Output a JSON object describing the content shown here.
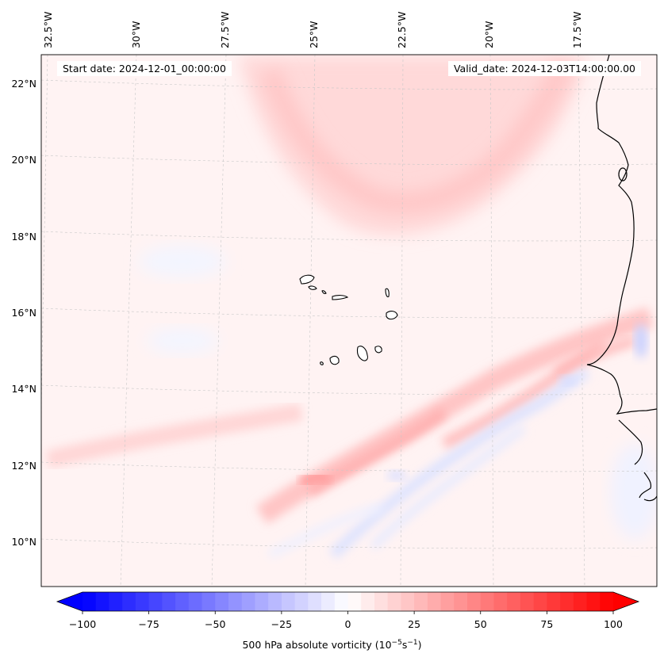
{
  "header": {
    "start_date": "Start date: 2024-12-01_00:00:00",
    "valid_date": "Valid_date: 2024-12-03T14:00:00.00"
  },
  "map": {
    "lon_labels": [
      "32.5°W",
      "30°W",
      "27.5°W",
      "25°W",
      "22.5°W",
      "20°W",
      "17.5°W"
    ],
    "lat_labels": [
      "22°N",
      "20°N",
      "18°N",
      "16°N",
      "14°N",
      "12°N",
      "10°N"
    ],
    "colors": {
      "neg_max": "#0000ff",
      "neutral": "#ffffff",
      "pos_max": "#ff0000",
      "coast": "#000000",
      "grid": "#bbbbbb"
    }
  },
  "colorbar": {
    "min": -100,
    "max": 100,
    "levels": 41,
    "ticks": [
      "−100",
      "−75",
      "−50",
      "−25",
      "0",
      "25",
      "50",
      "75",
      "100"
    ],
    "label": "500 hPa absolute vorticity (10",
    "label_exp1": "−5",
    "label_mid": "s",
    "label_exp2": "−1",
    "label_end": ")"
  }
}
